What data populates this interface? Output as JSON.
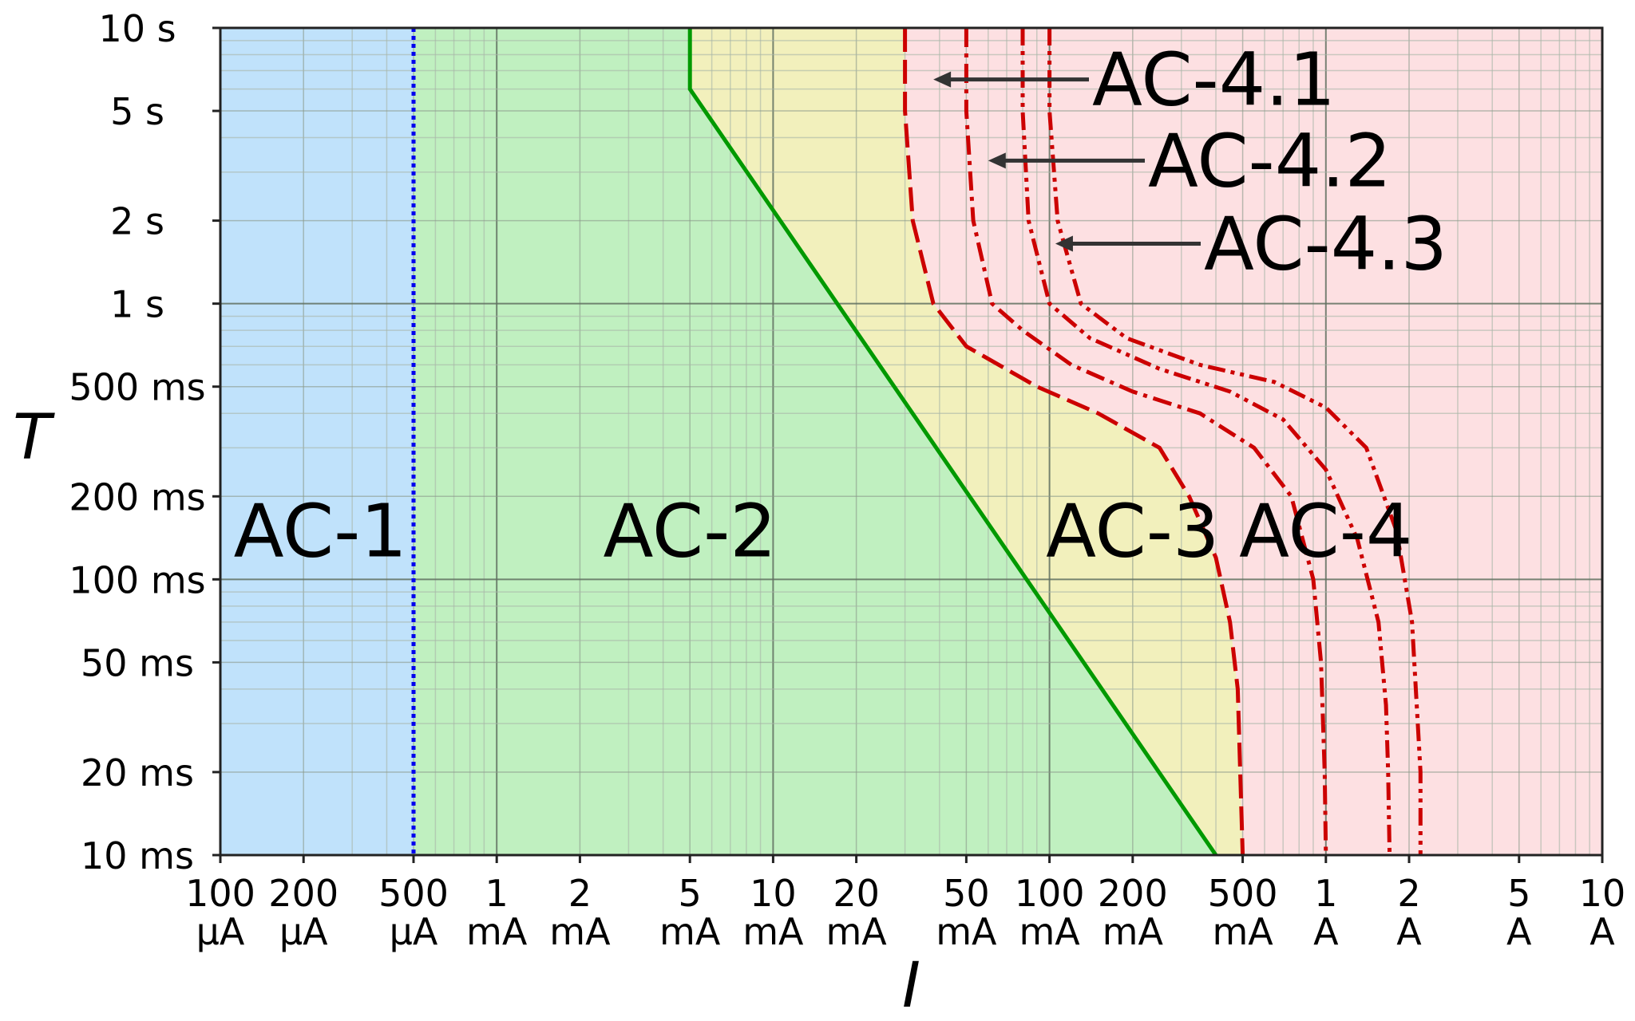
{
  "chart_data": {
    "type": "area",
    "title": "",
    "xlabel": "I",
    "ylabel": "T",
    "x_scale": "log",
    "y_scale": "log",
    "xlim_mA": [
      0.1,
      10000
    ],
    "ylim_ms": [
      10,
      10000
    ],
    "grid": true,
    "colors": {
      "zone_ac1": "#c0e2fb",
      "zone_ac2": "#c0f0c0",
      "zone_ac3": "#f2f0bc",
      "zone_ac4": "#fde0e2",
      "ac1_boundary": "#0000ee",
      "ac2_boundary": "#009900",
      "ac4_curves": "#cc0000",
      "arrow": "#333333"
    },
    "x_ticks": [
      {
        "value_mA": 0.1,
        "line1": "100",
        "line2": "µA"
      },
      {
        "value_mA": 0.2,
        "line1": "200",
        "line2": "µA"
      },
      {
        "value_mA": 0.5,
        "line1": "500",
        "line2": "µA"
      },
      {
        "value_mA": 1,
        "line1": "1",
        "line2": "mA"
      },
      {
        "value_mA": 2,
        "line1": "2",
        "line2": "mA"
      },
      {
        "value_mA": 5,
        "line1": "5",
        "line2": "mA"
      },
      {
        "value_mA": 10,
        "line1": "10",
        "line2": "mA"
      },
      {
        "value_mA": 20,
        "line1": "20",
        "line2": "mA"
      },
      {
        "value_mA": 50,
        "line1": "50",
        "line2": "mA"
      },
      {
        "value_mA": 100,
        "line1": "100",
        "line2": "mA"
      },
      {
        "value_mA": 200,
        "line1": "200",
        "line2": "mA"
      },
      {
        "value_mA": 500,
        "line1": "500",
        "line2": "mA"
      },
      {
        "value_mA": 1000,
        "line1": "1",
        "line2": "A"
      },
      {
        "value_mA": 2000,
        "line1": "2",
        "line2": "A"
      },
      {
        "value_mA": 5000,
        "line1": "5",
        "line2": "A"
      },
      {
        "value_mA": 10000,
        "line1": "10",
        "line2": "A"
      }
    ],
    "y_ticks": [
      {
        "value_ms": 10,
        "label": "10 ms"
      },
      {
        "value_ms": 20,
        "label": "20 ms"
      },
      {
        "value_ms": 50,
        "label": "50 ms"
      },
      {
        "value_ms": 100,
        "label": "100 ms"
      },
      {
        "value_ms": 200,
        "label": "200 ms"
      },
      {
        "value_ms": 500,
        "label": "500 ms"
      },
      {
        "value_ms": 1000,
        "label": "1 s"
      },
      {
        "value_ms": 2000,
        "label": "2 s"
      },
      {
        "value_ms": 5000,
        "label": "5 s"
      },
      {
        "value_ms": 10000,
        "label": "10 s"
      }
    ],
    "zones": [
      {
        "id": "ac1",
        "label": "AC-1",
        "label_at": {
          "I_mA": 0.23,
          "T_ms": 150
        }
      },
      {
        "id": "ac2",
        "label": "AC-2",
        "label_at": {
          "I_mA": 5,
          "T_ms": 150
        }
      },
      {
        "id": "ac3",
        "label": "AC-3",
        "label_at": {
          "I_mA": 200,
          "T_ms": 150
        }
      },
      {
        "id": "ac4",
        "label": "AC-4",
        "label_at": {
          "I_mA": 1000,
          "T_ms": 150
        }
      }
    ],
    "boundaries": {
      "ac1_ac2": {
        "style": "dotted",
        "points": [
          [
            0.5,
            10000
          ],
          [
            0.5,
            10
          ]
        ]
      },
      "ac2_ac3": {
        "style": "solid",
        "points": [
          [
            5,
            10000
          ],
          [
            5,
            6000
          ],
          [
            400,
            10
          ]
        ]
      },
      "ac3_ac4_c1": {
        "style": "dashed",
        "points": [
          [
            30,
            10000
          ],
          [
            30,
            5000
          ],
          [
            32,
            2000
          ],
          [
            38,
            1000
          ],
          [
            50,
            700
          ],
          [
            90,
            500
          ],
          [
            150,
            400
          ],
          [
            250,
            300
          ],
          [
            320,
            200
          ],
          [
            400,
            120
          ],
          [
            450,
            70
          ],
          [
            480,
            40
          ],
          [
            490,
            20
          ],
          [
            500,
            10
          ]
        ]
      }
    },
    "curves": [
      {
        "name": "AC-4.1",
        "style": "dash-dot",
        "points": [
          [
            50,
            10000
          ],
          [
            50,
            5000
          ],
          [
            53,
            2000
          ],
          [
            62,
            1000
          ],
          [
            80,
            800
          ],
          [
            120,
            600
          ],
          [
            200,
            480
          ],
          [
            350,
            400
          ],
          [
            550,
            300
          ],
          [
            750,
            200
          ],
          [
            900,
            100
          ],
          [
            960,
            50
          ],
          [
            990,
            20
          ],
          [
            1000,
            10
          ]
        ],
        "arrow_to": {
          "I_mA": 38,
          "T_ms": 6500
        }
      },
      {
        "name": "AC-4.2",
        "style": "dash-dot-dot",
        "points": [
          [
            80,
            10000
          ],
          [
            80,
            5000
          ],
          [
            84,
            2000
          ],
          [
            100,
            1000
          ],
          [
            140,
            750
          ],
          [
            250,
            580
          ],
          [
            450,
            480
          ],
          [
            700,
            380
          ],
          [
            1000,
            250
          ],
          [
            1300,
            140
          ],
          [
            1550,
            70
          ],
          [
            1650,
            35
          ],
          [
            1680,
            20
          ],
          [
            1700,
            10
          ]
        ],
        "arrow_to": {
          "I_mA": 60,
          "T_ms": 3300
        }
      },
      {
        "name": "AC-4.3",
        "style": "dash-dot-dot",
        "points": [
          [
            100,
            10000
          ],
          [
            100,
            5000
          ],
          [
            107,
            2000
          ],
          [
            130,
            1000
          ],
          [
            190,
            750
          ],
          [
            350,
            600
          ],
          [
            650,
            520
          ],
          [
            1000,
            420
          ],
          [
            1400,
            300
          ],
          [
            1800,
            150
          ],
          [
            2050,
            70
          ],
          [
            2150,
            30
          ],
          [
            2200,
            20
          ],
          [
            2200,
            10
          ]
        ],
        "arrow_to": {
          "I_mA": 105,
          "T_ms": 1650
        }
      }
    ]
  }
}
